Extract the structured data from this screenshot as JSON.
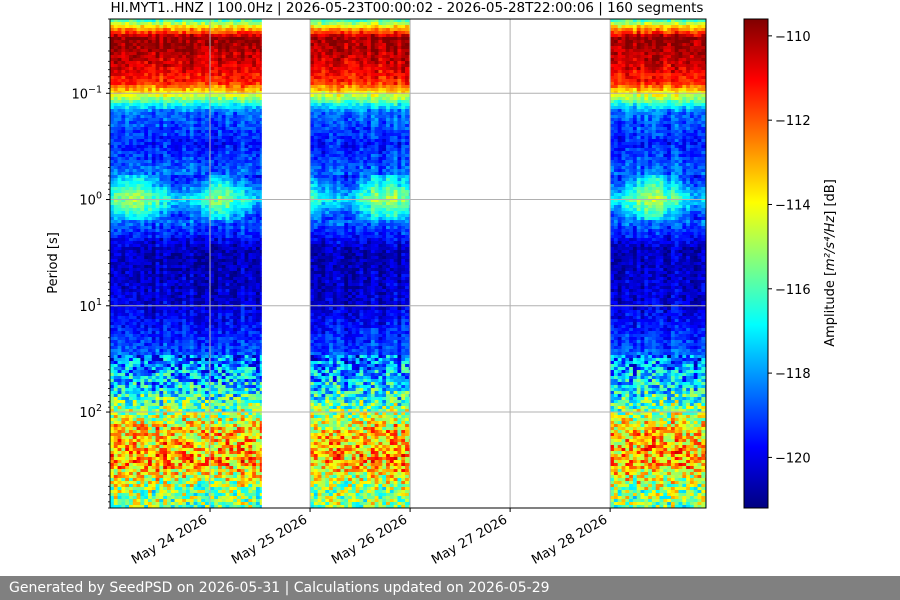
{
  "chart_data": {
    "type": "heatmap",
    "title": "HI.MYT1..HNZ | 100.0Hz | 2026-05-23T00:00:02 - 2026-05-28T22:00:06 | 160 segments",
    "ylabel": "Period [s]",
    "xlabel": "",
    "y_scale": "log",
    "y_reversed": true,
    "ylim": [
      0.02,
      800
    ],
    "y_ticks": [
      {
        "value": 0.1,
        "base": "10",
        "exp": "−1"
      },
      {
        "value": 1,
        "base": "10",
        "exp": "0"
      },
      {
        "value": 10,
        "base": "10",
        "exp": "1"
      },
      {
        "value": 100,
        "base": "10",
        "exp": "2"
      }
    ],
    "xlim": [
      "2026-05-23T00:00",
      "2026-05-28T23:00"
    ],
    "x_ticks": [
      "May 24 2026",
      "May 25 2026",
      "May 26 2026",
      "May 27 2026",
      "May 28 2026"
    ],
    "x_tick_dates": [
      "2026-05-24",
      "2026-05-25",
      "2026-05-26",
      "2026-05-27",
      "2026-05-28"
    ],
    "data_intervals": [
      [
        "2026-05-23T00:00",
        "2026-05-23T23:50"
      ],
      [
        "2026-05-24T00:05",
        "2026-05-24T12:20"
      ],
      [
        "2026-05-25T00:00",
        "2026-05-25T23:50"
      ],
      [
        "2026-05-28T00:00",
        "2026-05-28T23:00"
      ]
    ],
    "grid": true,
    "colorbar": {
      "label_base": "Amplitude [",
      "label_math": "m²/s⁴/Hz",
      "label_tail": "] [dB]",
      "min": -121.2,
      "max": -109.6,
      "ticks": [
        "−110",
        "−112",
        "−114",
        "−116",
        "−118",
        "−120"
      ],
      "tick_values": [
        -110,
        -112,
        -114,
        -116,
        -118,
        -120
      ],
      "colormap": "jet"
    },
    "period_profile_db": [
      {
        "period": 0.02,
        "db": -116.5
      },
      {
        "period": 0.03,
        "db": -109.8
      },
      {
        "period": 0.05,
        "db": -110.5
      },
      {
        "period": 0.08,
        "db": -111.5
      },
      {
        "period": 0.15,
        "db": -118.5
      },
      {
        "period": 0.3,
        "db": -119.5
      },
      {
        "period": 0.6,
        "db": -118.5
      },
      {
        "period": 1.0,
        "db": -116.0
      },
      {
        "period": 1.6,
        "db": -118.5
      },
      {
        "period": 3.0,
        "db": -120.6
      },
      {
        "period": 10,
        "db": -120.2
      },
      {
        "period": 25,
        "db": -119.0
      },
      {
        "period": 60,
        "db": -117.2
      },
      {
        "period": 150,
        "db": -113.5
      },
      {
        "period": 300,
        "db": -113.0
      },
      {
        "period": 500,
        "db": -115.0
      },
      {
        "period": 800,
        "db": -115.5
      }
    ]
  },
  "footer": {
    "text": "Generated by SeedPSD on 2026-05-31 | Calculations updated on 2026-05-29"
  }
}
